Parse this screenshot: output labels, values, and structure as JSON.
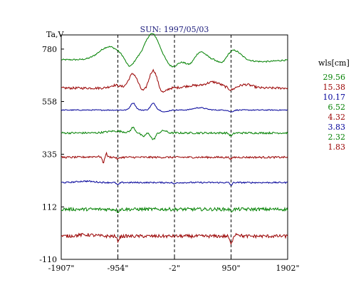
{
  "chart_data": {
    "type": "line",
    "title": "SUN: 1997/05/03",
    "ylabel": "Ta,V",
    "xlabel": "",
    "x_ticks": [
      "-1907\"",
      "-954\"",
      "-2\"",
      "950\"",
      "1902\""
    ],
    "x_tick_values": [
      -1907,
      -954,
      -2,
      950,
      1902
    ],
    "xlim": [
      -1907,
      1902
    ],
    "y_ticks": [
      780,
      558,
      335,
      112,
      -110
    ],
    "ylim": [
      -110,
      840
    ],
    "vlines": [
      -954,
      -2,
      950
    ],
    "grid": false,
    "legend_title": "wls[cm]",
    "legend_position": "right",
    "series": [
      {
        "name": "29.56",
        "color": "#008000",
        "baseline": 735,
        "features": [
          {
            "x": -1100,
            "amp": 55,
            "width": 240
          },
          {
            "x": -760,
            "amp": -35,
            "width": 90
          },
          {
            "x": -380,
            "amp": 110,
            "width": 170
          },
          {
            "x": -40,
            "amp": -30,
            "width": 130
          },
          {
            "x": 260,
            "amp": -25,
            "width": 110
          },
          {
            "x": 430,
            "amp": 35,
            "width": 140
          },
          {
            "x": 800,
            "amp": -20,
            "width": 90
          },
          {
            "x": 1000,
            "amp": 40,
            "width": 160
          },
          {
            "x": 1500,
            "amp": -8,
            "width": 300
          }
        ],
        "noise": 3
      },
      {
        "name": "15.38",
        "color": "#990000",
        "baseline": 615,
        "features": [
          {
            "x": -1000,
            "amp": 12,
            "width": 120
          },
          {
            "x": -700,
            "amp": 60,
            "width": 100
          },
          {
            "x": -530,
            "amp": -15,
            "width": 70
          },
          {
            "x": -360,
            "amp": 75,
            "width": 90
          },
          {
            "x": -200,
            "amp": -20,
            "width": 80
          },
          {
            "x": 300,
            "amp": 10,
            "width": 200
          },
          {
            "x": 650,
            "amp": 25,
            "width": 180
          },
          {
            "x": 950,
            "amp": -10,
            "width": 60
          },
          {
            "x": 1200,
            "amp": 15,
            "width": 150
          }
        ],
        "noise": 5
      },
      {
        "name": "10.17",
        "color": "#000099",
        "baseline": 522,
        "features": [
          {
            "x": -700,
            "amp": 30,
            "width": 60
          },
          {
            "x": -360,
            "amp": 28,
            "width": 60
          },
          {
            "x": -160,
            "amp": -8,
            "width": 70
          },
          {
            "x": 420,
            "amp": 10,
            "width": 140
          },
          {
            "x": 950,
            "amp": -8,
            "width": 50
          }
        ],
        "noise": 2
      },
      {
        "name": "6.52",
        "color": "#008000",
        "baseline": 425,
        "features": [
          {
            "x": -1000,
            "amp": 8,
            "width": 200
          },
          {
            "x": -700,
            "amp": 22,
            "width": 50
          },
          {
            "x": -530,
            "amp": -15,
            "width": 50
          },
          {
            "x": -360,
            "amp": -28,
            "width": 50
          },
          {
            "x": -180,
            "amp": 10,
            "width": 60
          },
          {
            "x": 950,
            "amp": -12,
            "width": 40
          }
        ],
        "noise": 4
      },
      {
        "name": "4.32",
        "color": "#990000",
        "baseline": 322,
        "features": [
          {
            "x": -1300,
            "amp": 3,
            "width": 200
          },
          {
            "x": -1200,
            "amp": -25,
            "width": 25
          },
          {
            "x": -1150,
            "amp": 15,
            "width": 20
          },
          {
            "x": -954,
            "amp": -8,
            "width": 30
          },
          {
            "x": 950,
            "amp": -6,
            "width": 30
          }
        ],
        "noise": 4
      },
      {
        "name": "3.83",
        "color": "#000099",
        "baseline": 215,
        "features": [
          {
            "x": -1500,
            "amp": 6,
            "width": 200
          },
          {
            "x": -954,
            "amp": -10,
            "width": 30
          },
          {
            "x": -2,
            "amp": -6,
            "width": 30
          },
          {
            "x": 950,
            "amp": -12,
            "width": 25
          }
        ],
        "noise": 3
      },
      {
        "name": "2.32",
        "color": "#008000",
        "baseline": 102,
        "features": [
          {
            "x": -954,
            "amp": -10,
            "width": 25
          },
          {
            "x": 950,
            "amp": -8,
            "width": 25
          }
        ],
        "noise": 7
      },
      {
        "name": "1.83",
        "color": "#990000",
        "baseline": -12,
        "features": [
          {
            "x": -1500,
            "amp": 6,
            "width": 200
          },
          {
            "x": -954,
            "amp": -18,
            "width": 30
          },
          {
            "x": 950,
            "amp": -35,
            "width": 30
          },
          {
            "x": 1050,
            "amp": 10,
            "width": 60
          }
        ],
        "noise": 7
      }
    ]
  }
}
